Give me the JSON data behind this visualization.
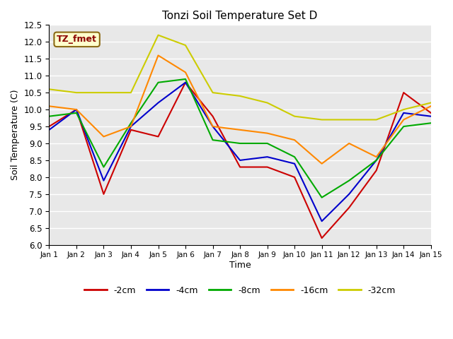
{
  "title": "Tonzi Soil Temperature Set D",
  "xlabel": "Time",
  "ylabel": "Soil Temperature (C)",
  "annotation": "TZ_fmet",
  "ylim": [
    6.0,
    12.5
  ],
  "xlim": [
    0,
    14
  ],
  "xtick_labels": [
    "Jan 1",
    "Jan 2",
    "Jan 3",
    "Jan 4",
    "Jan 5",
    "Jan 6",
    "Jan 7",
    "Jan 8",
    "Jan 9",
    "Jan 10",
    "Jan 11",
    "Jan 12",
    "Jan 13",
    "Jan 14",
    "Jan 15"
  ],
  "series": {
    "-2cm": {
      "color": "#cc0000",
      "x": [
        0,
        1,
        2,
        3,
        4,
        5,
        6,
        7,
        8,
        9,
        10,
        11,
        12,
        13,
        14
      ],
      "y": [
        9.5,
        10.0,
        7.5,
        9.4,
        9.2,
        10.8,
        9.8,
        8.3,
        8.3,
        8.0,
        6.2,
        7.1,
        8.2,
        10.5,
        9.9
      ]
    },
    "-4cm": {
      "color": "#0000cc",
      "x": [
        0,
        1,
        2,
        3,
        4,
        5,
        6,
        7,
        8,
        9,
        10,
        11,
        12,
        13,
        14
      ],
      "y": [
        9.4,
        10.0,
        7.9,
        9.5,
        10.2,
        10.8,
        9.5,
        8.5,
        8.6,
        8.4,
        6.7,
        7.5,
        8.5,
        9.9,
        9.8
      ]
    },
    "-8cm": {
      "color": "#00aa00",
      "x": [
        0,
        1,
        2,
        3,
        4,
        5,
        6,
        7,
        8,
        9,
        10,
        11,
        12,
        13,
        14
      ],
      "y": [
        9.8,
        9.9,
        8.3,
        9.6,
        10.8,
        10.9,
        9.1,
        9.0,
        9.0,
        8.6,
        7.4,
        7.9,
        8.5,
        9.5,
        9.6
      ]
    },
    "-16cm": {
      "color": "#ff8800",
      "x": [
        0,
        1,
        2,
        3,
        4,
        5,
        6,
        7,
        8,
        9,
        10,
        11,
        12,
        13,
        14
      ],
      "y": [
        10.1,
        10.0,
        9.2,
        9.5,
        11.6,
        11.1,
        9.5,
        9.4,
        9.3,
        9.1,
        8.4,
        9.0,
        8.6,
        9.7,
        10.1
      ]
    },
    "-32cm": {
      "color": "#cccc00",
      "x": [
        0,
        1,
        2,
        3,
        4,
        5,
        6,
        7,
        8,
        9,
        10,
        11,
        12,
        13,
        14
      ],
      "y": [
        10.6,
        10.5,
        10.5,
        10.5,
        12.2,
        11.9,
        10.5,
        10.4,
        10.2,
        9.8,
        9.7,
        9.7,
        9.7,
        10.0,
        10.2
      ]
    }
  },
  "legend_labels": [
    "-2cm",
    "-4cm",
    "-8cm",
    "-16cm",
    "-32cm"
  ],
  "legend_colors": [
    "#cc0000",
    "#0000cc",
    "#00aa00",
    "#ff8800",
    "#cccc00"
  ],
  "fig_width": 6.4,
  "fig_height": 4.8,
  "dpi": 100
}
